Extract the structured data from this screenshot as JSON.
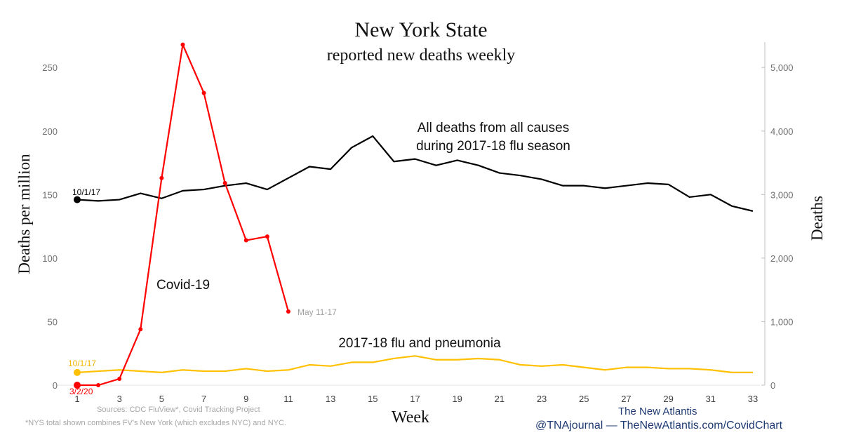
{
  "title": "New York State",
  "subtitle": "reported new deaths weekly",
  "source": "Sources: CDC FluView*, Covid Tracking Project",
  "footnote": "*NYS total shown combines FV's New York (which excludes NYC) and NYC.",
  "brand": "The New Atlantis",
  "brand_url": "@TNAjournal — TheNewAtlantis.com/CovidChart",
  "chart_data": {
    "type": "line",
    "xlabel": "Week",
    "ylabel": "Deaths per million",
    "y2label": "Deaths",
    "xlim": [
      1,
      33
    ],
    "ylim": [
      0,
      270
    ],
    "y2lim": [
      0,
      5400
    ],
    "xticks": [
      1,
      3,
      5,
      7,
      9,
      11,
      13,
      15,
      17,
      19,
      21,
      23,
      25,
      27,
      29,
      31,
      33
    ],
    "yticks": [
      0,
      50,
      100,
      150,
      200,
      250
    ],
    "y2ticks": [
      "0",
      "1,000",
      "2,000",
      "3,000",
      "4,000",
      "5,000"
    ],
    "y2tick_values": [
      0,
      1000,
      2000,
      3000,
      4000,
      5000
    ],
    "series": [
      {
        "name": "All deaths from all causes during 2017-18 flu season",
        "label_lines": [
          "All deaths from all causes",
          "during 2017-18 flu season"
        ],
        "color": "#000000",
        "start_label": "10/1/17",
        "x": [
          1,
          2,
          3,
          4,
          5,
          6,
          7,
          8,
          9,
          10,
          11,
          12,
          13,
          14,
          15,
          16,
          17,
          18,
          19,
          20,
          21,
          22,
          23,
          24,
          25,
          26,
          27,
          28,
          29,
          30,
          31,
          32,
          33
        ],
        "values": [
          146,
          145,
          146,
          151,
          147,
          153,
          154,
          157,
          159,
          154,
          163,
          172,
          170,
          187,
          196,
          176,
          178,
          173,
          177,
          173,
          167,
          165,
          162,
          157,
          157,
          155,
          157,
          159,
          158,
          148,
          150,
          141,
          137
        ]
      },
      {
        "name": "2017-18 flu and pneumonia",
        "label_lines": [
          "2017-18 flu and pneumonia"
        ],
        "color": "#ffc000",
        "start_label": "10/1/17",
        "x": [
          1,
          2,
          3,
          4,
          5,
          6,
          7,
          8,
          9,
          10,
          11,
          12,
          13,
          14,
          15,
          16,
          17,
          18,
          19,
          20,
          21,
          22,
          23,
          24,
          25,
          26,
          27,
          28,
          29,
          30,
          31,
          32,
          33
        ],
        "values": [
          10,
          11,
          12,
          11,
          10,
          12,
          11,
          11,
          13,
          11,
          12,
          16,
          15,
          18,
          18,
          21,
          23,
          20,
          20,
          21,
          20,
          16,
          15,
          16,
          14,
          12,
          14,
          14,
          13,
          13,
          12,
          10,
          10
        ]
      },
      {
        "name": "Covid-19",
        "label_lines": [
          "Covid-19"
        ],
        "color": "#ff0000",
        "start_label": "3/2/20",
        "end_label": "May 11-17",
        "x": [
          1,
          2,
          3,
          4,
          5,
          6,
          7,
          8,
          9,
          10,
          11
        ],
        "values": [
          0,
          0,
          5,
          44,
          163,
          268,
          230,
          159,
          114,
          117,
          58
        ]
      }
    ]
  }
}
